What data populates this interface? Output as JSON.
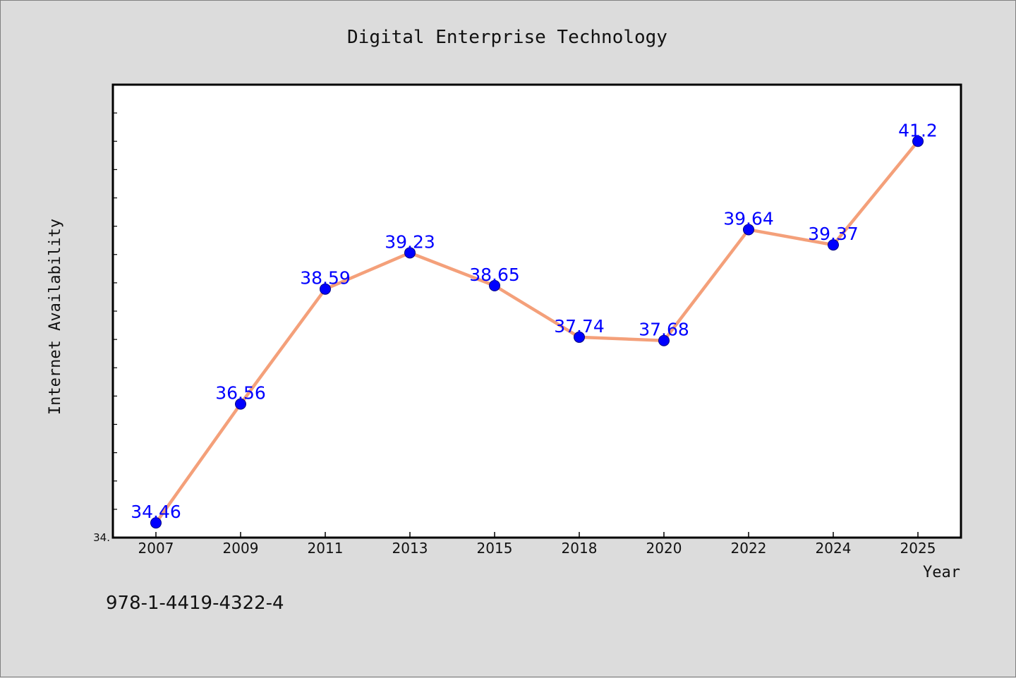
{
  "page": {
    "title": "Digital Enterprise Technology",
    "footer_text": "978-1-4419-4322-4"
  },
  "chart_data": {
    "type": "line",
    "title": "Digital Enterprise Technology",
    "xlabel": "Year",
    "ylabel": "Internet Availability",
    "categories": [
      "2007",
      "2009",
      "2011",
      "2013",
      "2015",
      "2018",
      "2020",
      "2022",
      "2024",
      "2025"
    ],
    "values": [
      34.46,
      36.56,
      38.59,
      39.23,
      38.65,
      37.74,
      37.68,
      39.64,
      39.37,
      41.2
    ],
    "value_labels": [
      "34.46",
      "36.56",
      "38.59",
      "39.23",
      "38.65",
      "37.74",
      "37.68",
      "39.64",
      "39.37",
      "41.2"
    ],
    "ylim": [
      34.2,
      42.2
    ],
    "ytick_label": "34.",
    "yminor_step": 0.5,
    "grid": false,
    "line_color": "#f4a07a",
    "marker_color": "#0000ff",
    "label_color": "#0000ff",
    "background_color": "#dcdcdc",
    "plot_background_color": "#ffffff"
  }
}
